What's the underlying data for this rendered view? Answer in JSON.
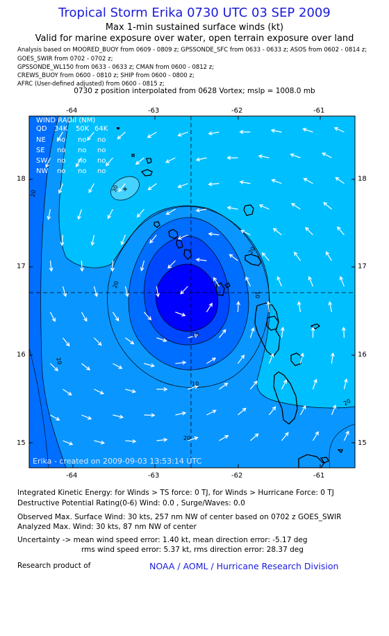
{
  "header": {
    "title": "Tropical Storm Erika 0730 UTC 03 SEP 2009",
    "subtitle": "Max 1-min sustained surface winds (kt)",
    "valid_line": "Valid for marine exposure over water, open terrain exposure over land"
  },
  "analysis_lines": [
    "Analysis based on  MOORED_BUOY from 0609 - 0809 z;  GPSSONDE_SFC from 0633 - 0633 z;  ASOS from 0602 - 0814 z;",
    "GOES_SWIR from 0702 - 0702 z;",
    "GPSSONDE_WL150 from 0633 - 0633 z;  CMAN from 0600 - 0812 z;",
    "CREWS_BUOY from 0600 - 0810 z;  SHIP from 0600 - 0800 z;",
    "AFRC (User-defined adjusted) from 0600 - 0815 z;"
  ],
  "position_line": "0730 z position interpolated from 0628 Vortex; mslp = 1008.0 mb",
  "map": {
    "lon_ticks": [
      "-64",
      "-63",
      "-62",
      "-61"
    ],
    "lat_ticks": [
      "18",
      "17",
      "16",
      "15"
    ],
    "contour_labels": [
      "30",
      "20",
      "10",
      "10",
      "20",
      "20",
      "20",
      "20",
      "20",
      "10"
    ],
    "credit": "Erika - created on 2009-09-03 13:53:14 UTC",
    "colors": {
      "level_20_30": "#00bfff",
      "level_10_20": "#0a96ff",
      "level_0_10": "#006eff",
      "core": "#0000ff",
      "peak": "#1e90ff",
      "land": "#000000"
    }
  },
  "wind_radii": {
    "header": "WIND RADII (NM)",
    "columns": [
      "QD",
      "34K",
      "50K",
      "64K"
    ],
    "rows": [
      {
        "quadrant": "NE",
        "r34": "no",
        "r50": "no",
        "r64": "no"
      },
      {
        "quadrant": "SE",
        "r34": "no",
        "r50": "no",
        "r64": "no"
      },
      {
        "quadrant": "SW",
        "r34": "no",
        "r50": "no",
        "r64": "no"
      },
      {
        "quadrant": "NW",
        "r34": "no",
        "r50": "no",
        "r64": "no"
      }
    ]
  },
  "stats": {
    "ike": "Integrated Kinetic Energy:  for Winds > TS force: 0 TJ,  for Winds > Hurricane Force: 0 TJ",
    "dpr": "Destructive Potential Rating(0-6)   Wind: 0.0 , Surge/Waves: 0.0",
    "observed": "Observed Max. Surface Wind: 30 kts, 257 nm NW of center based on 0702 z GOES_SWIR",
    "analyzed": "Analyzed Max. Wind: 30 kts, 87 nm NW of center",
    "uncertainty_1": "Uncertainty -> mean wind speed error: 1.40 kt,   mean direction error:  -5.17 deg",
    "uncertainty_2": "rms wind speed error: 5.37 kt,   rms direction error: 28.37 deg"
  },
  "footer": {
    "research_label": "Research product of",
    "organization": "NOAA / AOML / Hurricane Research Division"
  }
}
